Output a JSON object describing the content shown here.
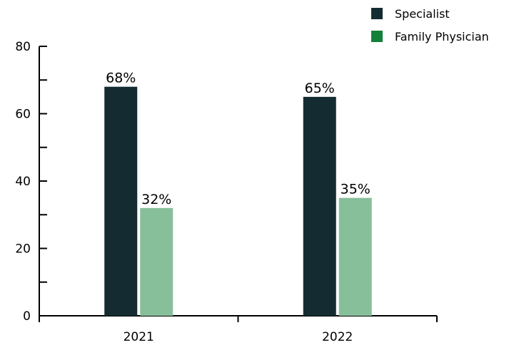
{
  "chart_data": {
    "type": "bar",
    "categories": [
      "2021",
      "2022"
    ],
    "series": [
      {
        "name": "Specialist",
        "values": [
          68,
          65
        ],
        "labels": [
          "68%",
          "65%"
        ],
        "color": "#142c31"
      },
      {
        "name": "Family Physician",
        "values": [
          32,
          35
        ],
        "labels": [
          "32%",
          "35%"
        ],
        "color": "#88bf9b"
      }
    ],
    "legend_colors": [
      "#142c31",
      "#138039"
    ],
    "title": "",
    "xlabel": "",
    "ylabel": "",
    "ylim": [
      0,
      80
    ],
    "y_major_ticks": [
      0,
      20,
      40,
      60,
      80
    ],
    "y_minor_ticks": [
      10,
      30,
      50,
      70
    ],
    "grid": false,
    "legend_position": "top-right"
  }
}
